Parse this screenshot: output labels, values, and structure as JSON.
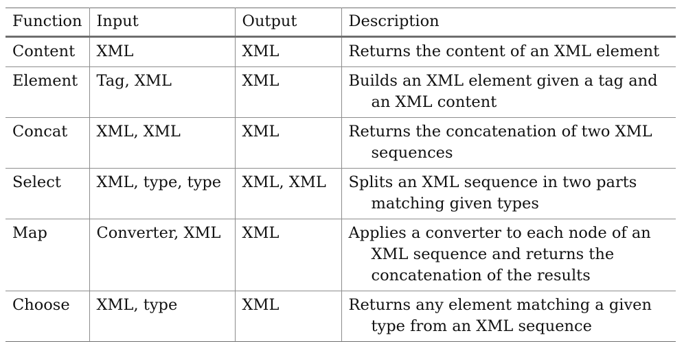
{
  "table": {
    "headers": [
      "Function",
      "Input",
      "Output",
      "Description"
    ],
    "rows": [
      {
        "function": "Content",
        "input": "XML",
        "output": "XML",
        "description": "Returns the content of an XML element"
      },
      {
        "function": "Element",
        "input": "Tag, XML",
        "output": "XML",
        "description": "Builds an XML element given a tag and an XML content"
      },
      {
        "function": "Concat",
        "input": "XML, XML",
        "output": "XML",
        "description": "Returns the concatenation of two XML sequences"
      },
      {
        "function": "Select",
        "input": "XML, type, type",
        "output": "XML, XML",
        "description": "Splits an XML sequence in two parts matching given types"
      },
      {
        "function": "Map",
        "input": "Converter, XML",
        "output": "XML",
        "description": "Applies a converter to each node of an XML sequence and returns the concatenation of the results"
      },
      {
        "function": "Choose",
        "input": "XML, type",
        "output": "XML",
        "description": "Returns any element matching a given type from an XML sequence"
      }
    ]
  }
}
